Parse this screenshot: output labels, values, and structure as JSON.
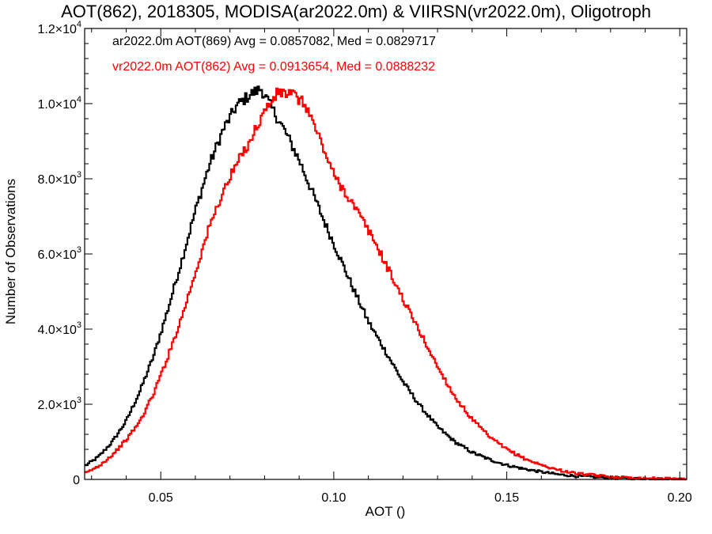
{
  "chart_data": {
    "type": "line",
    "title": "AOT(862), 2018305, MODISA(ar2022.0m) & VIIRSN(vr2022.0m), Oligotroph",
    "xlabel": "AOT ()",
    "ylabel": "Number of Observations",
    "xlim": [
      0.028,
      0.202
    ],
    "ylim": [
      0,
      12000
    ],
    "xticks": [
      {
        "value": 0.05,
        "label": "0.05"
      },
      {
        "value": 0.1,
        "label": "0.10"
      },
      {
        "value": 0.15,
        "label": "0.15"
      },
      {
        "value": 0.2,
        "label": "0.20"
      }
    ],
    "yticks": [
      {
        "value": 0,
        "mantissa": "0",
        "exp": ""
      },
      {
        "value": 2000,
        "mantissa": "2.0×10",
        "exp": "3"
      },
      {
        "value": 4000,
        "mantissa": "4.0×10",
        "exp": "3"
      },
      {
        "value": 6000,
        "mantissa": "6.0×10",
        "exp": "3"
      },
      {
        "value": 8000,
        "mantissa": "8.0×10",
        "exp": "3"
      },
      {
        "value": 10000,
        "mantissa": "1.0×10",
        "exp": "4"
      },
      {
        "value": 12000,
        "mantissa": "1.2×10",
        "exp": "4"
      }
    ],
    "grid": false,
    "legend_position": "top-left",
    "series": [
      {
        "name": "ar2022.0m AOT(869) Avg = 0.0857082, Med = 0.0829717",
        "color": "#000000",
        "step": true,
        "x": [
          0.028,
          0.032,
          0.036,
          0.04,
          0.044,
          0.048,
          0.052,
          0.056,
          0.06,
          0.064,
          0.068,
          0.072,
          0.076,
          0.079,
          0.082,
          0.086,
          0.09,
          0.094,
          0.098,
          0.102,
          0.106,
          0.11,
          0.115,
          0.12,
          0.125,
          0.13,
          0.135,
          0.14,
          0.145,
          0.15,
          0.155,
          0.16,
          0.165,
          0.17,
          0.18,
          0.19,
          0.202
        ],
        "values": [
          350,
          600,
          1000,
          1550,
          2350,
          3300,
          4500,
          5800,
          7150,
          8350,
          9300,
          9950,
          10250,
          10400,
          9900,
          9250,
          8500,
          7600,
          6700,
          5850,
          5000,
          4200,
          3400,
          2600,
          1950,
          1400,
          1000,
          720,
          530,
          380,
          280,
          200,
          130,
          90,
          40,
          15,
          5
        ]
      },
      {
        "name": "vr2022.0m AOT(862) Avg = 0.0913654, Med = 0.0888232",
        "color": "#ff0000",
        "step": true,
        "x": [
          0.028,
          0.032,
          0.036,
          0.04,
          0.044,
          0.048,
          0.052,
          0.056,
          0.06,
          0.064,
          0.068,
          0.072,
          0.076,
          0.08,
          0.084,
          0.088,
          0.092,
          0.096,
          0.1,
          0.104,
          0.108,
          0.112,
          0.116,
          0.12,
          0.125,
          0.13,
          0.135,
          0.14,
          0.145,
          0.15,
          0.155,
          0.16,
          0.165,
          0.17,
          0.18,
          0.19,
          0.202
        ],
        "values": [
          150,
          350,
          650,
          1050,
          1550,
          2300,
          3250,
          4300,
          5500,
          6700,
          7650,
          8400,
          9050,
          9800,
          10300,
          10250,
          9950,
          9050,
          8100,
          7550,
          6950,
          6300,
          5550,
          4800,
          3900,
          3000,
          2200,
          1600,
          1130,
          800,
          560,
          380,
          250,
          160,
          70,
          30,
          10
        ]
      }
    ]
  }
}
